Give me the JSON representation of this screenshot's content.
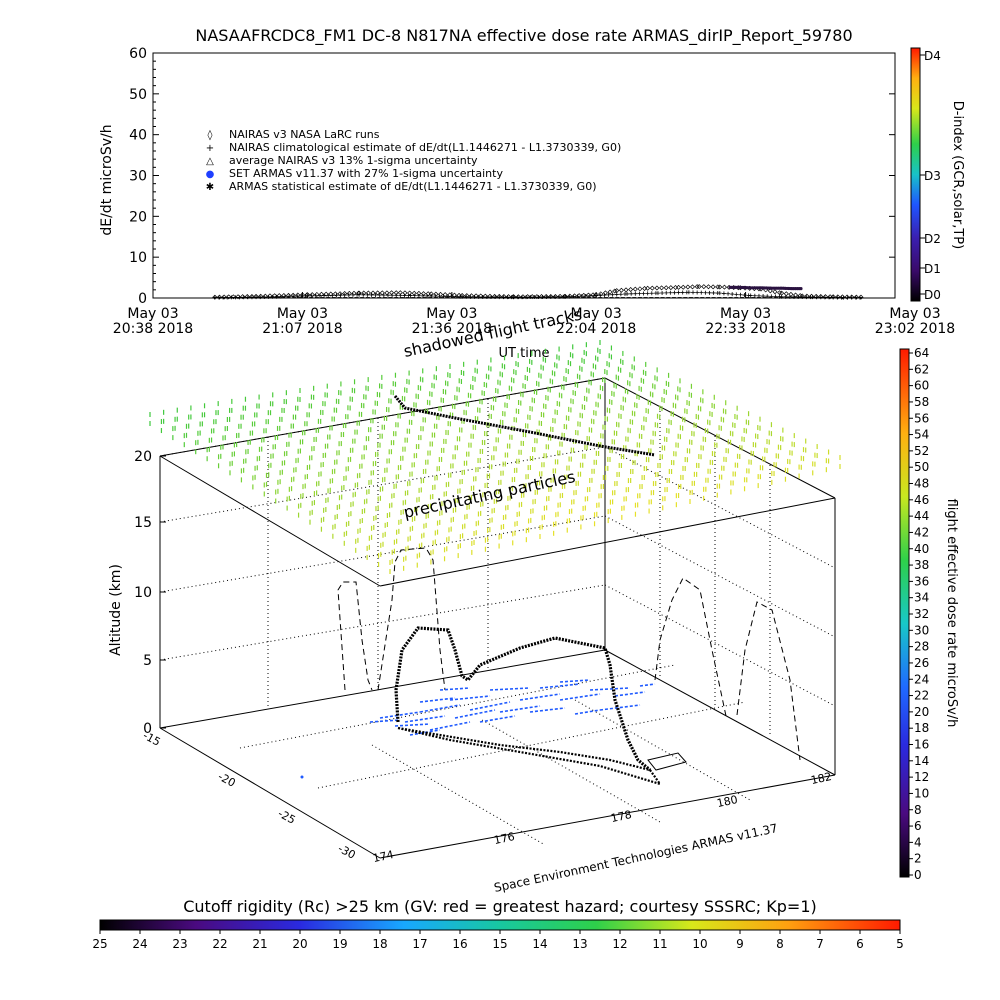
{
  "title": "NASAAFRCDC8_FM1 DC-8   N817NA effective dose rate ARMAS_dirIP_Report_59780",
  "chart_data": [
    {
      "type": "line",
      "panel": "dose-rate-timeseries",
      "ylabel": "dE/dt microSv/h",
      "xlabel": "UT time",
      "ylim": [
        0,
        60
      ],
      "y_ticks": [
        0,
        10,
        20,
        30,
        40,
        50,
        60
      ],
      "x_ticks": [
        {
          "top": "May 03",
          "bottom": "20:38 2018",
          "t": 0
        },
        {
          "top": "May 03",
          "bottom": "21:07 2018",
          "t": 29
        },
        {
          "top": "May 03",
          "bottom": "21:36 2018",
          "t": 58
        },
        {
          "top": "May 03",
          "bottom": "22:04 2018",
          "t": 86
        },
        {
          "top": "May 03",
          "bottom": "22:33 2018",
          "t": 115
        },
        {
          "top": "May 03",
          "bottom": "23:02 2018",
          "t": 144
        }
      ],
      "legend": [
        {
          "symbol": "◊",
          "label": "NAIRAS v3 NASA LaRC runs"
        },
        {
          "symbol": "+",
          "label": "NAIRAS climatological estimate of dE/dt(L1.1446271 - L1.3730339, G0)"
        },
        {
          "symbol": "△",
          "label": "average NAIRAS v3 13% 1-sigma uncertainty"
        },
        {
          "symbol": "●",
          "label": "SET ARMAS v11.37 with 27% 1-sigma uncertainty",
          "color": "#1f3fff"
        },
        {
          "symbol": "✱",
          "label": "ARMAS statistical estimate of dE/dt(L1.1446271 - L1.3730339, G0)"
        }
      ],
      "series": [
        {
          "name": "NAIRAS v3 NASA LaRC runs",
          "x": [
            12,
            20,
            30,
            40,
            48,
            54,
            60,
            70,
            80,
            86,
            90,
            96,
            102,
            106,
            110,
            114,
            118,
            122,
            126,
            132,
            138
          ],
          "values": [
            0.2,
            0.4,
            0.8,
            1.2,
            1.3,
            1.0,
            0.6,
            0.3,
            0.4,
            0.8,
            1.8,
            2.4,
            2.6,
            2.8,
            2.7,
            2.5,
            2.2,
            1.2,
            0.5,
            0.3,
            0.2
          ]
        },
        {
          "name": "ARMAS statistical estimate of dE/dt(L1.1446271 - L1.3730339, G0)",
          "x": [
            12,
            20,
            30,
            40,
            50,
            60,
            70,
            80,
            86,
            92,
            98,
            104,
            110,
            116,
            122,
            128,
            134,
            138
          ],
          "values": [
            0.1,
            0.2,
            0.5,
            0.8,
            0.6,
            0.3,
            0.2,
            0.3,
            0.6,
            1.0,
            1.2,
            1.4,
            1.2,
            0.6,
            0.3,
            0.2,
            0.1,
            0.1
          ]
        },
        {
          "name": "SET ARMAS v11.37 with 27% 1-sigma uncertainty",
          "x": [
            112,
            114,
            116,
            118,
            120,
            122,
            124,
            126
          ],
          "values": [
            2.6,
            2.6,
            2.5,
            2.5,
            2.4,
            2.4,
            2.3,
            2.3
          ]
        }
      ]
    },
    {
      "type": "scatter",
      "panel": "flight-track-3d",
      "zlabel": "Altitude (km)",
      "z_ticks": [
        0,
        5,
        10,
        15,
        20
      ],
      "lat_ticks": [
        -15,
        -20,
        -25,
        -30
      ],
      "lon_ticks": [
        174,
        176,
        178,
        180,
        182
      ],
      "annotations": [
        "shadowed flight tracks",
        "precipitating particles"
      ],
      "credit": "Space Environment Technologies ARMAS v11.37",
      "flight_path": [
        {
          "lon": 175.2,
          "lat": -16.5,
          "alt": 0.3
        },
        {
          "lon": 176.0,
          "lat": -17.0,
          "alt": 6.0
        },
        {
          "lon": 176.6,
          "lat": -17.5,
          "alt": 7.5
        },
        {
          "lon": 177.2,
          "lat": -18.0,
          "alt": 7.0
        },
        {
          "lon": 177.6,
          "lat": -18.2,
          "alt": 4.0
        },
        {
          "lon": 178.0,
          "lat": -17.8,
          "alt": 5.0
        },
        {
          "lon": 178.6,
          "lat": -17.2,
          "alt": 6.5
        },
        {
          "lon": 179.6,
          "lat": -16.6,
          "alt": 6.2
        },
        {
          "lon": 180.2,
          "lat": -16.3,
          "alt": 6.0
        },
        {
          "lon": 180.0,
          "lat": -18.0,
          "alt": 4.0
        },
        {
          "lon": 179.2,
          "lat": -20.5,
          "alt": 2.0
        },
        {
          "lon": 179.0,
          "lat": -22.0,
          "alt": 0.3
        }
      ],
      "ground_track": [
        {
          "lon": 175.2,
          "lat": -16.5
        },
        {
          "lon": 176.2,
          "lat": -17.5
        },
        {
          "lon": 177.4,
          "lat": -18.3
        },
        {
          "lon": 178.2,
          "lat": -17.8
        },
        {
          "lon": 179.4,
          "lat": -17.0
        },
        {
          "lon": 180.2,
          "lat": -16.3
        },
        {
          "lon": 179.8,
          "lat": -18.5
        },
        {
          "lon": 179.2,
          "lat": -20.5
        },
        {
          "lon": 179.0,
          "lat": -22.0
        },
        {
          "lon": 176.2,
          "lat": -20.0
        },
        {
          "lon": 175.2,
          "lat": -16.5
        }
      ],
      "shadow_track_20km": [
        {
          "lon": 175.2,
          "lat": -16.5
        },
        {
          "lon": 176.2,
          "lat": -17.5
        },
        {
          "lon": 178.0,
          "lat": -18.0
        },
        {
          "lon": 180.2,
          "lat": -16.3
        },
        {
          "lon": 181.5,
          "lat": -15.2
        }
      ]
    }
  ],
  "colorbars": {
    "d_index": {
      "label": "D-index (GCR,solar,TP)",
      "ticks": [
        "D4",
        "D3",
        "D2",
        "D1",
        "D0"
      ]
    },
    "dose_rate": {
      "label": "flight effective dose rate microSv/h",
      "ticks": [
        0,
        2,
        4,
        6,
        8,
        10,
        12,
        14,
        16,
        18,
        20,
        22,
        24,
        26,
        28,
        30,
        32,
        34,
        36,
        38,
        40,
        42,
        44,
        46,
        48,
        50,
        52,
        54,
        56,
        58,
        60,
        62,
        64
      ]
    },
    "cutoff_rigidity": {
      "label": "Cutoff rigidity (Rc) >25 km (GV: red = greatest hazard; courtesy SSSRC; Kp=1)",
      "ticks": [
        25,
        24,
        23,
        22,
        21,
        20,
        19,
        18,
        17,
        16,
        15,
        14,
        13,
        12,
        11,
        10,
        9,
        8,
        7,
        6,
        5
      ]
    }
  }
}
